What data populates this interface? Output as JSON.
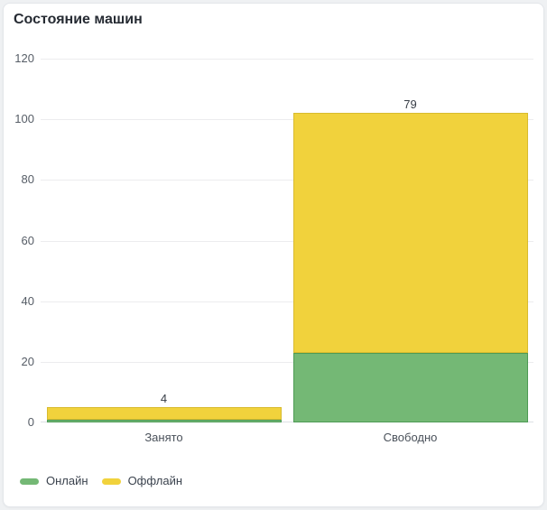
{
  "chart_data": {
    "type": "bar",
    "stacked": true,
    "title": "Состояние машин",
    "categories": [
      "Занято",
      "Свободно"
    ],
    "series": [
      {
        "name": "Онлайн",
        "color": "#74b875",
        "border_color": "#4e9b55",
        "values": [
          1,
          23
        ]
      },
      {
        "name": "Оффлайн",
        "color": "#f1d23c",
        "border_color": "#d8bb2f",
        "values": [
          4,
          79
        ]
      }
    ],
    "ylim": [
      0,
      120
    ],
    "yticks": [
      0,
      20,
      40,
      60,
      80,
      100,
      120
    ],
    "grid": true,
    "value_labels": true,
    "legend_position": "bottom-left"
  },
  "colors": {
    "page_bg": "#eff1f3",
    "card_bg": "#ffffff",
    "card_border": "#e3e6ea",
    "grid_line": "#ececee",
    "axis_line": "#dde0e4",
    "title_text": "#262b33",
    "tick_text": "#565d66",
    "category_text": "#4a515a",
    "value_text": "#363c45",
    "legend_text": "#3a424d"
  }
}
